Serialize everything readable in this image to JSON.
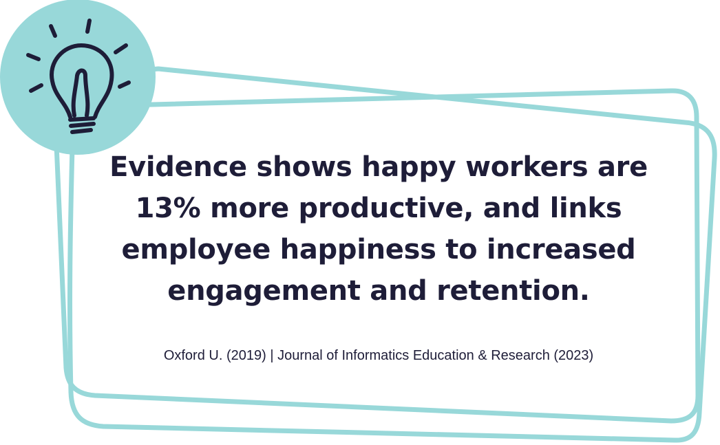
{
  "quote": {
    "text": "Evidence shows happy workers are 13% more productive, and links employee happiness to increased engagement and retention."
  },
  "source": {
    "text": "Oxford U. (2019) | Journal of Informatics Education & Research (2023)"
  },
  "decor": {
    "icon": "lightbulb-icon",
    "accent_color": "#98d8d9",
    "ink_color": "#1e1d38"
  }
}
